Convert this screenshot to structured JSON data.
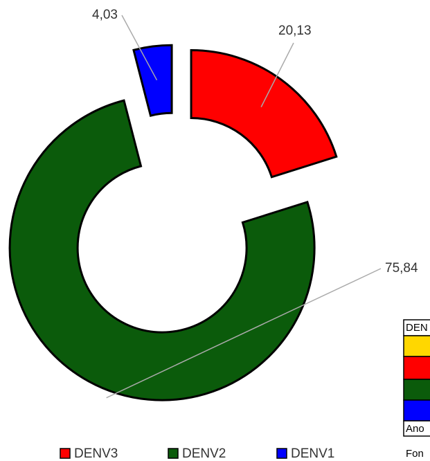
{
  "chart_data": {
    "type": "donut",
    "categories": [
      "DENV3",
      "DENV2",
      "DENV1"
    ],
    "values": [
      20.13,
      75.84,
      4.03
    ],
    "value_labels": [
      "20,13",
      "75,84",
      "4,03"
    ],
    "colors": [
      "#ff0000",
      "#0b5b0b",
      "#0000ff"
    ],
    "legend": "bottom"
  },
  "side_table": {
    "header": "DEN",
    "last_row": "Ano",
    "footer": "Fon"
  }
}
